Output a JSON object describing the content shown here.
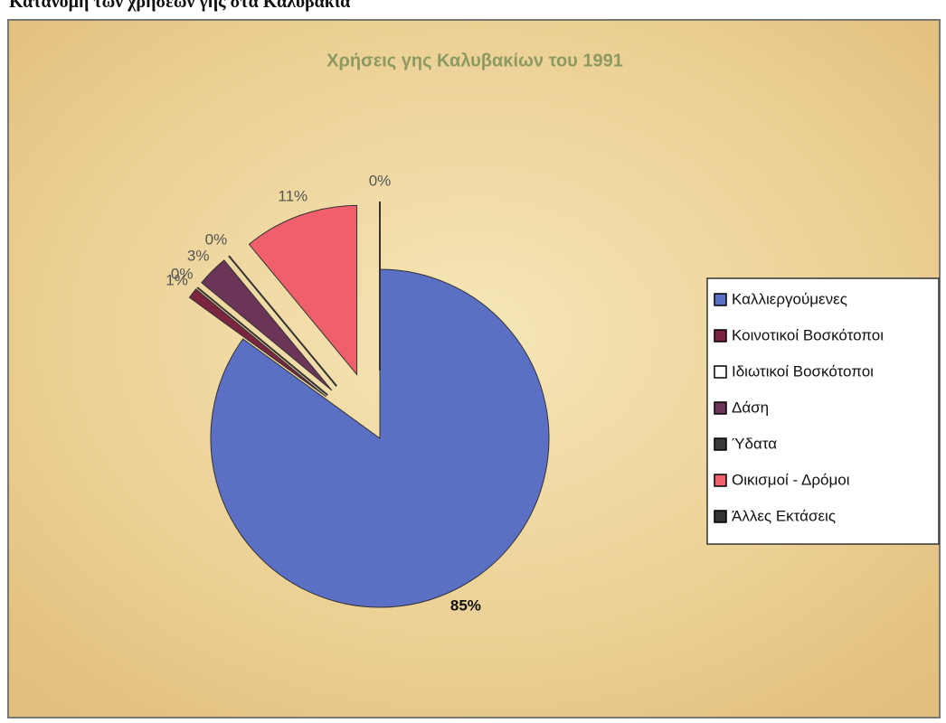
{
  "heading": "Κατανομή των χρήσεων γης στα Καλύβακια",
  "chart_data": {
    "type": "pie",
    "title": "Χρήσεις γης Καλυβακίων του 1991",
    "categories": [
      "Καλλιεργούμενες",
      "Κοινοτικοί Βοσκότοποι",
      "Ιδιωτικοί Βοσκότοποι",
      "Δάση",
      "Ύδατα",
      "Οικισμοί - Δρόμοι",
      "Άλλες Εκτάσεις"
    ],
    "values": [
      85,
      1,
      0,
      3,
      0,
      11,
      0
    ],
    "value_labels": [
      "85%",
      "1%",
      "0%",
      "3%",
      "0%",
      "11%",
      "0%"
    ],
    "colors": [
      "#5b6fc4",
      "#7a2440",
      "#ffffff",
      "#6b3558",
      "#3a3a3a",
      "#f0606c",
      "#333333"
    ],
    "legend": "right"
  }
}
